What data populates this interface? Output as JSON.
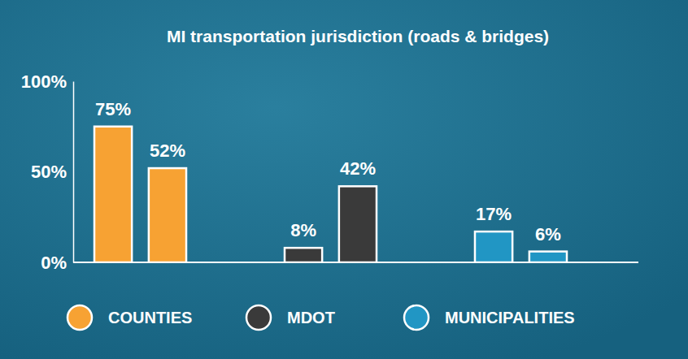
{
  "chart_data": {
    "type": "bar",
    "title": "MI transportation jurisdiction (roads & bridges)",
    "categories": [
      "COUNTIES",
      "MDOT",
      "MUNICIPALITIES"
    ],
    "colors": [
      "#f7a233",
      "#3a3a3a",
      "#2196c4"
    ],
    "series": [
      {
        "values": [
          75,
          8,
          17
        ],
        "value_labels": [
          "75%",
          "8%",
          "17%"
        ]
      },
      {
        "values": [
          52,
          42,
          6
        ],
        "value_labels": [
          "52%",
          "42%",
          "6%"
        ]
      }
    ],
    "ylim": [
      0,
      100
    ],
    "yticks": [
      {
        "value": 0,
        "label": "0%"
      },
      {
        "value": 50,
        "label": "50%"
      },
      {
        "value": 100,
        "label": "100%"
      }
    ],
    "grid": false,
    "legend": "bottom",
    "data_labels": true,
    "tick_labels": "y"
  }
}
